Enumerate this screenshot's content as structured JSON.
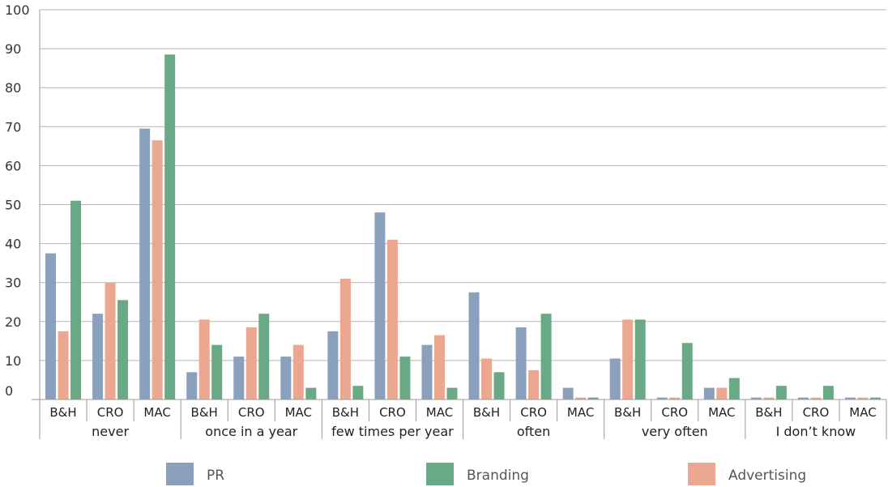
{
  "chart_data": {
    "type": "bar",
    "title": "",
    "xlabel": "",
    "ylabel": "",
    "ylim": [
      0,
      100
    ],
    "yticks": [
      0,
      10,
      20,
      30,
      40,
      50,
      60,
      70,
      80,
      90,
      100
    ],
    "grid": true,
    "legend_position": "bottom",
    "groups": [
      "never",
      "once in a year",
      "few times per year",
      "often",
      "very often",
      "I don’t know"
    ],
    "subcategories": [
      "B&H",
      "CRO",
      "MAC"
    ],
    "categories": [
      "never B&H",
      "never CRO",
      "never MAC",
      "once in a year B&H",
      "once in a year CRO",
      "once in a year MAC",
      "few times per year B&H",
      "few times per year CRO",
      "few times per year MAC",
      "often B&H",
      "often CRO",
      "often MAC",
      "very often B&H",
      "very often CRO",
      "very often MAC",
      "I don’t know B&H",
      "I don’t know CRO",
      "I don’t know MAC"
    ],
    "bar_order": [
      "PR",
      "Advertising",
      "Branding"
    ],
    "series": [
      {
        "name": "PR",
        "color": "#8aa0bd",
        "values": [
          37.5,
          22,
          69.5,
          7,
          11,
          11,
          17.5,
          48,
          14,
          27.5,
          18.5,
          3,
          10.5,
          0.5,
          3,
          0.5,
          0.5,
          0.5
        ]
      },
      {
        "name": "Branding",
        "color": "#6aa985",
        "values": [
          51,
          25.5,
          88.5,
          14,
          22,
          3,
          3.5,
          11,
          3,
          7,
          22,
          0.5,
          20.5,
          14.5,
          5.5,
          3.5,
          3.5,
          0.5
        ]
      },
      {
        "name": "Advertising",
        "color": "#eba78f",
        "values": [
          17.5,
          30,
          66.5,
          20.5,
          18.5,
          14,
          31,
          41,
          16.5,
          10.5,
          7.5,
          0.5,
          20.5,
          0.5,
          3,
          0.5,
          0.5,
          0.5
        ]
      }
    ]
  }
}
